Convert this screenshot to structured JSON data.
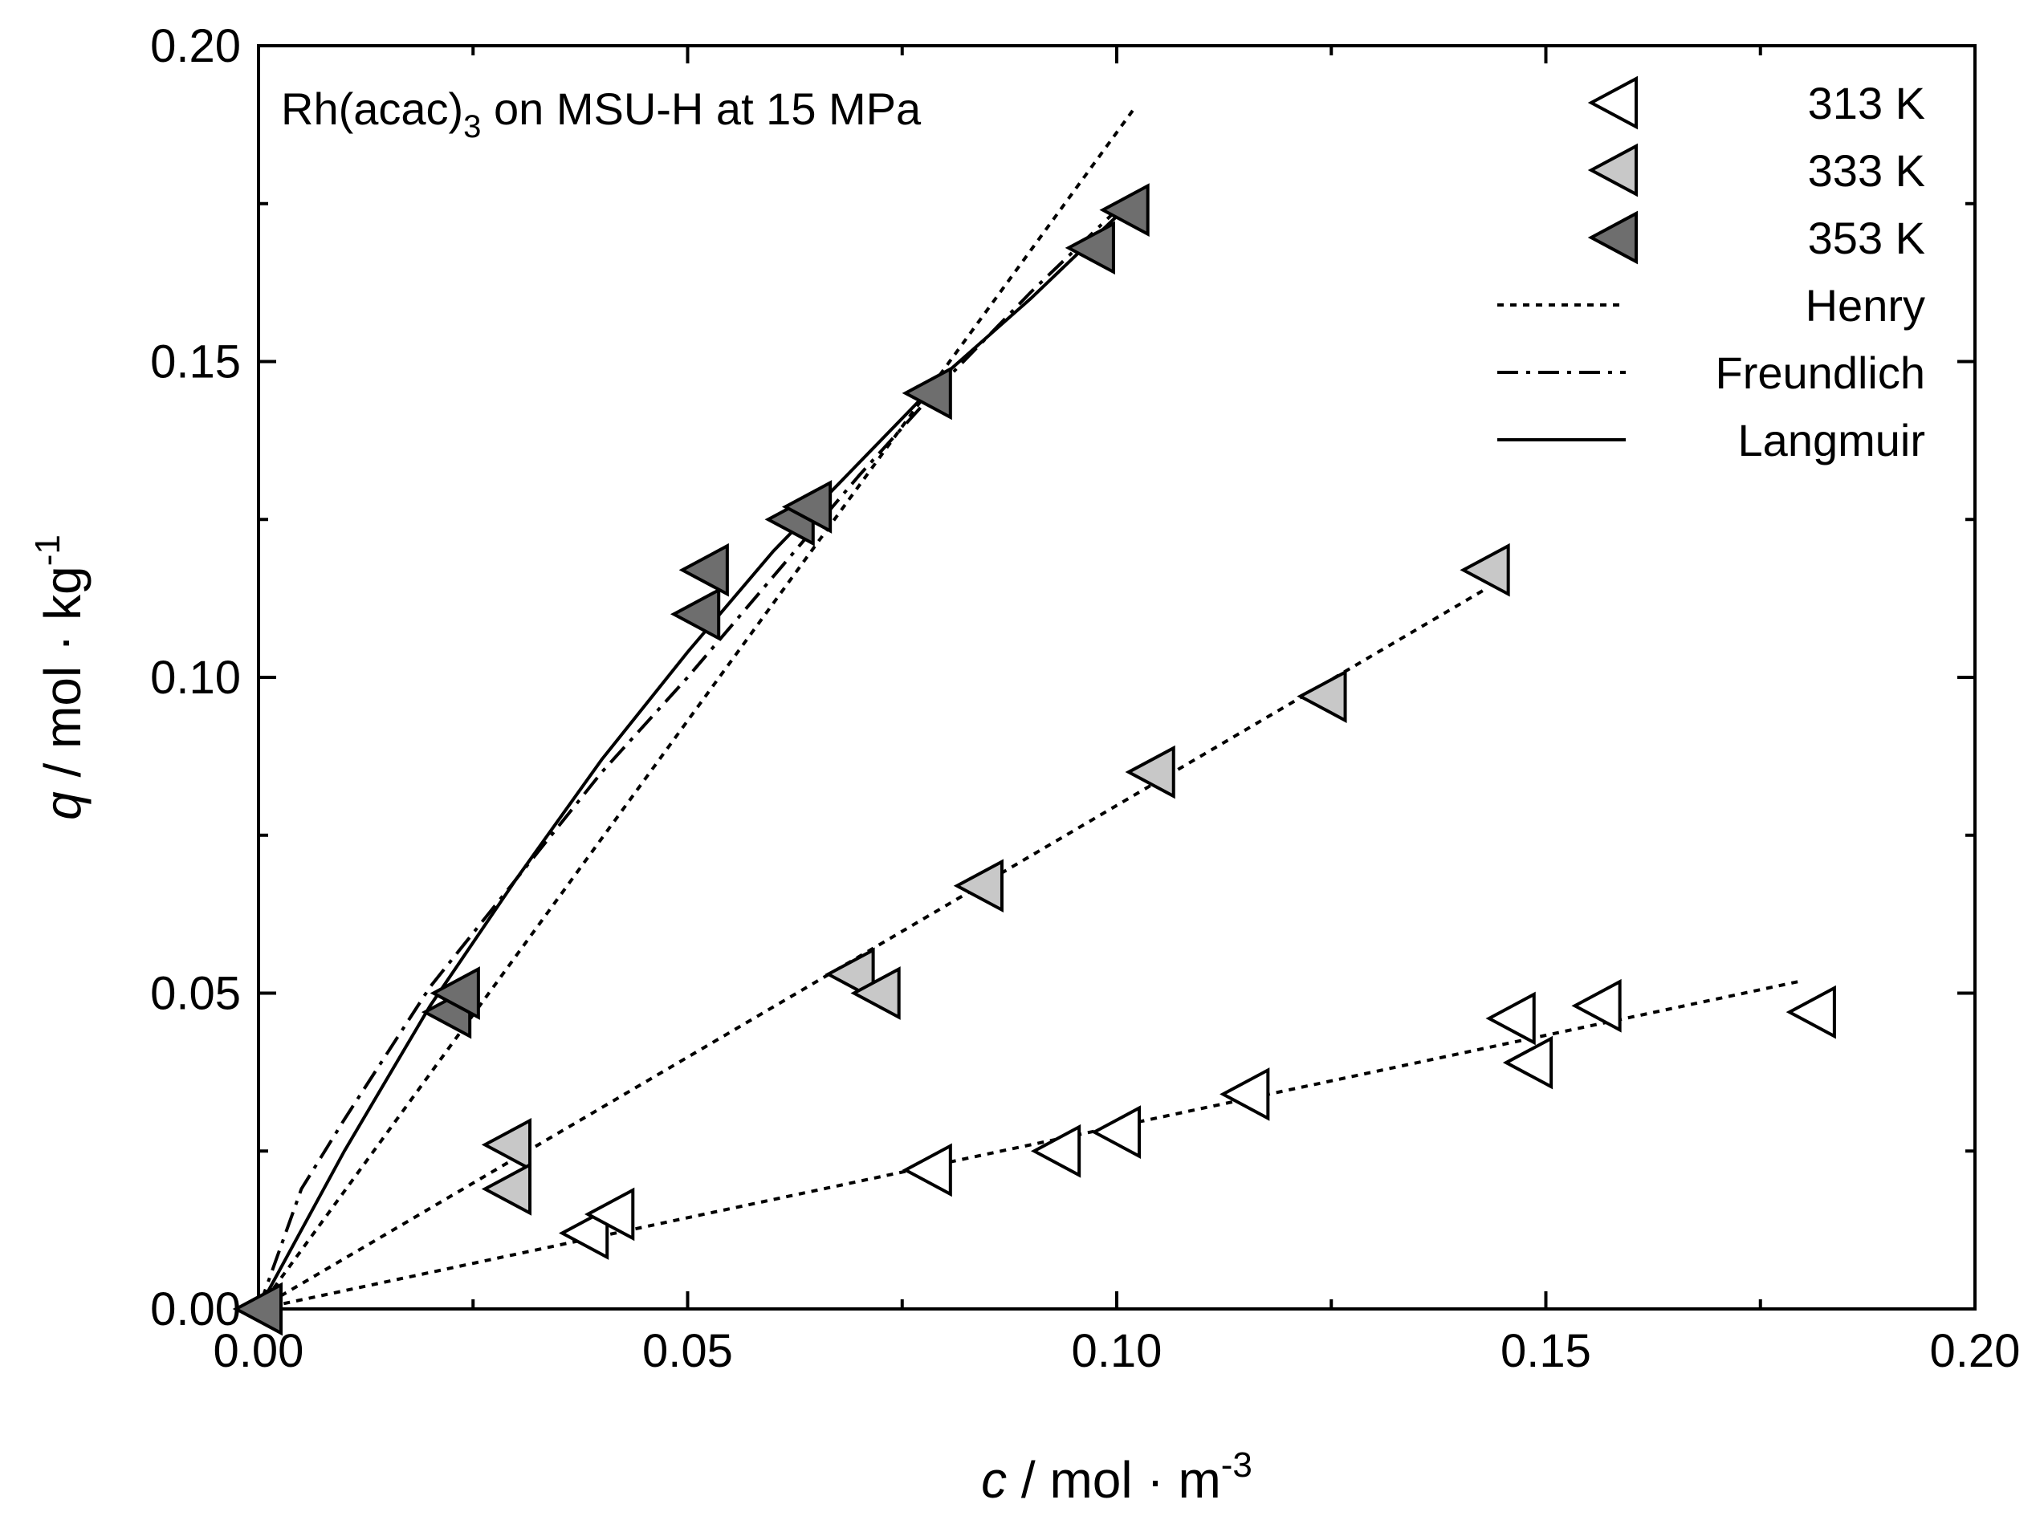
{
  "chart_data": {
    "type": "scatter",
    "title_main": "Rh(acac)",
    "title_sub": "3",
    "title_rest": " on MSU-H at 15 MPa",
    "xlabel": {
      "var": "c",
      "rest": " / mol · m",
      "exp": "-3"
    },
    "ylabel": {
      "var": "q",
      "rest": " / mol · kg",
      "exp": "-1"
    },
    "xlim": [
      0,
      0.2
    ],
    "ylim": [
      0,
      0.2
    ],
    "xticks": [
      "0.00",
      "0.05",
      "0.10",
      "0.15",
      "0.20"
    ],
    "yticks": [
      "0.00",
      "0.05",
      "0.10",
      "0.15",
      "0.20"
    ],
    "legend_position": "top-right",
    "series": [
      {
        "name": "313 K",
        "fill": "#ffffff",
        "points": [
          [
            0.038,
            0.012
          ],
          [
            0.041,
            0.015
          ],
          [
            0.078,
            0.022
          ],
          [
            0.093,
            0.025
          ],
          [
            0.1,
            0.028
          ],
          [
            0.115,
            0.034
          ],
          [
            0.146,
            0.046
          ],
          [
            0.148,
            0.039
          ],
          [
            0.156,
            0.048
          ],
          [
            0.181,
            0.047
          ]
        ]
      },
      {
        "name": "333 K",
        "fill": "#c8c8c8",
        "points": [
          [
            0.029,
            0.026
          ],
          [
            0.029,
            0.019
          ],
          [
            0.069,
            0.053
          ],
          [
            0.072,
            0.05
          ],
          [
            0.084,
            0.067
          ],
          [
            0.104,
            0.085
          ],
          [
            0.124,
            0.097
          ],
          [
            0.143,
            0.117
          ]
        ]
      },
      {
        "name": "353 K",
        "fill": "#6e6e6e",
        "points": [
          [
            0.0,
            0.0
          ],
          [
            0.022,
            0.047
          ],
          [
            0.023,
            0.05
          ],
          [
            0.051,
            0.11
          ],
          [
            0.052,
            0.117
          ],
          [
            0.062,
            0.125
          ],
          [
            0.064,
            0.127
          ],
          [
            0.078,
            0.145
          ],
          [
            0.097,
            0.168
          ],
          [
            0.101,
            0.174
          ]
        ]
      }
    ],
    "fits": [
      {
        "name": "Henry",
        "dash": "8,8",
        "series": "313 K",
        "points": [
          [
            0,
            0
          ],
          [
            0.18,
            0.052
          ]
        ]
      },
      {
        "name": "Henry",
        "dash": "8,8",
        "series": "333 K",
        "points": [
          [
            0,
            0
          ],
          [
            0.143,
            0.114
          ]
        ]
      },
      {
        "name": "Henry",
        "dash": "8,8",
        "series": "353 K",
        "points": [
          [
            0,
            0
          ],
          [
            0.102,
            0.19
          ]
        ]
      },
      {
        "name": "Freundlich",
        "dash": "26,10,5,10",
        "series": "353 K",
        "points": [
          [
            0,
            0
          ],
          [
            0.005,
            0.019
          ],
          [
            0.01,
            0.03
          ],
          [
            0.02,
            0.051
          ],
          [
            0.03,
            0.068
          ],
          [
            0.04,
            0.085
          ],
          [
            0.05,
            0.1
          ],
          [
            0.06,
            0.116
          ],
          [
            0.07,
            0.132
          ],
          [
            0.08,
            0.147
          ],
          [
            0.09,
            0.161
          ],
          [
            0.1,
            0.174
          ]
        ]
      },
      {
        "name": "Langmuir",
        "dash": "",
        "series": "353 K",
        "points": [
          [
            0,
            0
          ],
          [
            0.01,
            0.025
          ],
          [
            0.02,
            0.048
          ],
          [
            0.03,
            0.068
          ],
          [
            0.04,
            0.087
          ],
          [
            0.05,
            0.104
          ],
          [
            0.06,
            0.12
          ],
          [
            0.07,
            0.134
          ],
          [
            0.08,
            0.148
          ],
          [
            0.09,
            0.16
          ],
          [
            0.1,
            0.173
          ]
        ]
      }
    ],
    "legend": [
      {
        "label": "313 K",
        "kind": "marker",
        "fill": "#ffffff"
      },
      {
        "label": "333 K",
        "kind": "marker",
        "fill": "#c8c8c8"
      },
      {
        "label": "353 K",
        "kind": "marker",
        "fill": "#6e6e6e"
      },
      {
        "label": "Henry",
        "kind": "line",
        "dash": "8,8"
      },
      {
        "label": "Freundlich",
        "kind": "line",
        "dash": "26,10,5,10"
      },
      {
        "label": "Langmuir",
        "kind": "line",
        "dash": ""
      }
    ]
  }
}
